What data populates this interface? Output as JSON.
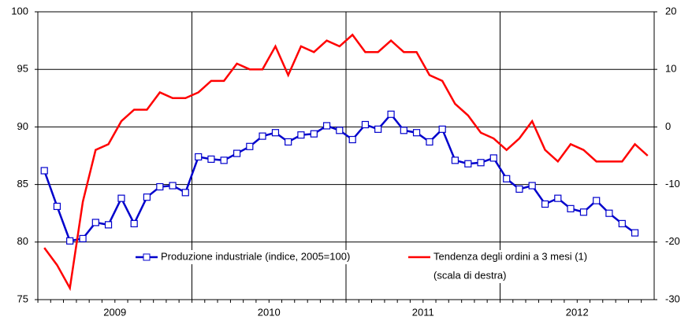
{
  "chart_data": {
    "type": "line",
    "x": [
      2009.042,
      2009.125,
      2009.208,
      2009.292,
      2009.375,
      2009.458,
      2009.542,
      2009.625,
      2009.708,
      2009.792,
      2009.875,
      2009.958,
      2010.042,
      2010.125,
      2010.208,
      2010.292,
      2010.375,
      2010.458,
      2010.542,
      2010.625,
      2010.708,
      2010.792,
      2010.875,
      2010.958,
      2011.042,
      2011.125,
      2011.208,
      2011.292,
      2011.375,
      2011.458,
      2011.542,
      2011.625,
      2011.708,
      2011.792,
      2011.875,
      2011.958,
      2012.042,
      2012.125,
      2012.208,
      2012.292,
      2012.375,
      2012.458,
      2012.542,
      2012.625,
      2012.708,
      2012.792,
      2012.875,
      2012.958
    ],
    "xlim": [
      2009,
      2013
    ],
    "xticks": [
      {
        "value": 2009.5,
        "label": "2009"
      },
      {
        "value": 2010.5,
        "label": "2010"
      },
      {
        "value": 2011.5,
        "label": "2011"
      },
      {
        "value": 2012.5,
        "label": "2012"
      }
    ],
    "xgrid": [
      2010,
      2011,
      2012
    ],
    "ylim": [
      75,
      100
    ],
    "yticks": [
      75,
      80,
      85,
      90,
      95,
      100
    ],
    "y2lim": [
      -30,
      20
    ],
    "y2ticks": [
      -30,
      -20,
      -10,
      0,
      10,
      20
    ],
    "grid": true,
    "y2_note": "(scala di destra)",
    "series": [
      {
        "name": "Produzione industriale (indice, 2005=100)",
        "color": "#0000cc",
        "marker": "square",
        "values": [
          86.2,
          83.1,
          80.1,
          80.3,
          81.7,
          81.5,
          83.8,
          81.6,
          83.9,
          84.8,
          84.9,
          84.3,
          87.4,
          87.2,
          87.1,
          87.7,
          88.3,
          89.2,
          89.5,
          88.7,
          89.3,
          89.4,
          90.1,
          89.7,
          88.9,
          90.2,
          89.8,
          91.1,
          89.7,
          89.5,
          88.7,
          89.8,
          87.1,
          86.8,
          86.9,
          87.3,
          85.5,
          84.6,
          84.9,
          83.3,
          83.8,
          82.9,
          82.6,
          83.6,
          82.5,
          81.6,
          80.8,
          null
        ]
      },
      {
        "name": "Tendenza degli ordini a 3 mesi (1)",
        "color": "#ff0000",
        "axis": "y2",
        "values": [
          -21,
          -24,
          -28,
          -13,
          -4,
          -3,
          1,
          3,
          3,
          6,
          5,
          5,
          6,
          8,
          8,
          11,
          10,
          10,
          14,
          9,
          14,
          13,
          15,
          14,
          16,
          13,
          13,
          15,
          13,
          13,
          9,
          8,
          4,
          2,
          -1,
          -2,
          -4,
          -2,
          1,
          -4,
          -6,
          -3,
          -4,
          -6,
          -6,
          -6,
          -3,
          -5
        ]
      }
    ]
  }
}
